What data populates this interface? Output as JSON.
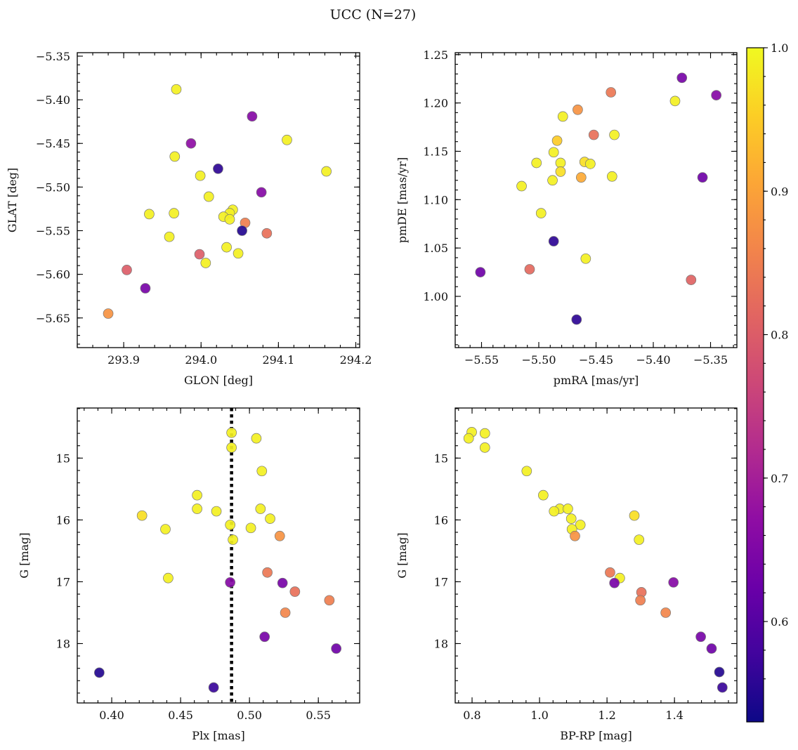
{
  "chart_data": {
    "title": "UCC (N=27)",
    "colorbar": {
      "range": [
        0.53,
        1.0
      ],
      "ticks": [
        "0.6",
        "0.7",
        "0.8",
        "0.9",
        "1.0"
      ],
      "colormap": "plasma"
    },
    "colors": {
      "marker_edge": "#777777",
      "reference_line": "#000000"
    },
    "reference_line": {
      "panel": 2,
      "x": 0.487,
      "style": "dotted"
    },
    "panels": [
      {
        "type": "scatter",
        "xlabel": "GLON [deg]",
        "ylabel": "GLAT [deg]",
        "xlim": [
          293.84,
          294.205
        ],
        "ylim": [
          -5.684,
          -5.346
        ],
        "xticks": [
          "293.9",
          "294.0",
          "294.1",
          "294.2"
        ],
        "yticks": [
          "−5.35",
          "−5.40",
          "−5.45",
          "−5.50",
          "−5.55",
          "−5.60",
          "−5.65"
        ],
        "points": [
          {
            "x": 293.968,
            "y": -5.388,
            "c": 0.99
          },
          {
            "x": 294.066,
            "y": -5.419,
            "c": 0.66
          },
          {
            "x": 293.987,
            "y": -5.45,
            "c": 0.67
          },
          {
            "x": 294.111,
            "y": -5.446,
            "c": 0.99
          },
          {
            "x": 293.966,
            "y": -5.465,
            "c": 0.99
          },
          {
            "x": 294.022,
            "y": -5.479,
            "c": 0.56
          },
          {
            "x": 294.162,
            "y": -5.482,
            "c": 0.99
          },
          {
            "x": 293.999,
            "y": -5.487,
            "c": 0.99
          },
          {
            "x": 294.078,
            "y": -5.506,
            "c": 0.66
          },
          {
            "x": 294.01,
            "y": -5.511,
            "c": 0.99
          },
          {
            "x": 293.933,
            "y": -5.531,
            "c": 0.99
          },
          {
            "x": 293.965,
            "y": -5.53,
            "c": 0.99
          },
          {
            "x": 294.041,
            "y": -5.526,
            "c": 0.99
          },
          {
            "x": 294.037,
            "y": -5.53,
            "c": 0.99
          },
          {
            "x": 294.029,
            "y": -5.534,
            "c": 0.99
          },
          {
            "x": 294.037,
            "y": -5.537,
            "c": 0.99
          },
          {
            "x": 294.057,
            "y": -5.541,
            "c": 0.85
          },
          {
            "x": 294.053,
            "y": -5.55,
            "c": 0.55
          },
          {
            "x": 294.085,
            "y": -5.553,
            "c": 0.83
          },
          {
            "x": 293.959,
            "y": -5.557,
            "c": 0.99
          },
          {
            "x": 294.033,
            "y": -5.569,
            "c": 0.99
          },
          {
            "x": 294.048,
            "y": -5.576,
            "c": 0.99
          },
          {
            "x": 293.998,
            "y": -5.577,
            "c": 0.8
          },
          {
            "x": 294.006,
            "y": -5.587,
            "c": 0.99
          },
          {
            "x": 293.904,
            "y": -5.595,
            "c": 0.8
          },
          {
            "x": 293.928,
            "y": -5.616,
            "c": 0.64
          },
          {
            "x": 293.88,
            "y": -5.645,
            "c": 0.88
          }
        ]
      },
      {
        "type": "scatter",
        "xlabel": "pmRA [mas/yr]",
        "ylabel": "pmDE [mas/yr]",
        "xlim": [
          -5.573,
          -5.327
        ],
        "ylim": [
          0.947,
          1.252
        ],
        "xticks": [
          "−5.55",
          "−5.50",
          "−5.45",
          "−5.40",
          "−5.35"
        ],
        "yticks": [
          "1.25",
          "1.20",
          "1.15",
          "1.10",
          "1.05",
          "1.00"
        ],
        "points": [
          {
            "x": -5.375,
            "y": 1.226,
            "c": 0.64
          },
          {
            "x": -5.437,
            "y": 1.211,
            "c": 0.84
          },
          {
            "x": -5.345,
            "y": 1.208,
            "c": 0.66
          },
          {
            "x": -5.381,
            "y": 1.202,
            "c": 0.99
          },
          {
            "x": -5.466,
            "y": 1.193,
            "c": 0.88
          },
          {
            "x": -5.479,
            "y": 1.186,
            "c": 0.99
          },
          {
            "x": -5.452,
            "y": 1.167,
            "c": 0.83
          },
          {
            "x": -5.434,
            "y": 1.167,
            "c": 0.99
          },
          {
            "x": -5.484,
            "y": 1.161,
            "c": 0.95
          },
          {
            "x": -5.487,
            "y": 1.149,
            "c": 0.99
          },
          {
            "x": -5.46,
            "y": 1.139,
            "c": 0.97
          },
          {
            "x": -5.455,
            "y": 1.137,
            "c": 0.99
          },
          {
            "x": -5.502,
            "y": 1.138,
            "c": 0.99
          },
          {
            "x": -5.481,
            "y": 1.138,
            "c": 0.99
          },
          {
            "x": -5.481,
            "y": 1.129,
            "c": 0.97
          },
          {
            "x": -5.463,
            "y": 1.123,
            "c": 0.91
          },
          {
            "x": -5.436,
            "y": 1.124,
            "c": 0.99
          },
          {
            "x": -5.357,
            "y": 1.123,
            "c": 0.63
          },
          {
            "x": -5.488,
            "y": 1.12,
            "c": 0.99
          },
          {
            "x": -5.515,
            "y": 1.114,
            "c": 0.99
          },
          {
            "x": -5.498,
            "y": 1.086,
            "c": 0.99
          },
          {
            "x": -5.487,
            "y": 1.057,
            "c": 0.56
          },
          {
            "x": -5.459,
            "y": 1.039,
            "c": 0.99
          },
          {
            "x": -5.508,
            "y": 1.028,
            "c": 0.82
          },
          {
            "x": -5.551,
            "y": 1.025,
            "c": 0.63
          },
          {
            "x": -5.367,
            "y": 1.017,
            "c": 0.81
          },
          {
            "x": -5.467,
            "y": 0.976,
            "c": 0.56
          }
        ]
      },
      {
        "type": "scatter",
        "xlabel": "Plx [mas]",
        "ylabel": "G [mag]",
        "xlim": [
          0.375,
          0.58
        ],
        "ylim": [
          18.96,
          14.19
        ],
        "xticks": [
          "0.40",
          "0.45",
          "0.50",
          "0.55"
        ],
        "yticks": [
          "15",
          "16",
          "17",
          "18"
        ],
        "points": [
          {
            "x": 0.487,
            "y": 14.59,
            "c": 0.99
          },
          {
            "x": 0.505,
            "y": 14.68,
            "c": 0.99
          },
          {
            "x": 0.487,
            "y": 14.83,
            "c": 0.99
          },
          {
            "x": 0.509,
            "y": 15.21,
            "c": 0.99
          },
          {
            "x": 0.462,
            "y": 15.6,
            "c": 0.99
          },
          {
            "x": 0.508,
            "y": 15.82,
            "c": 0.99
          },
          {
            "x": 0.462,
            "y": 15.82,
            "c": 0.99
          },
          {
            "x": 0.476,
            "y": 15.86,
            "c": 0.99
          },
          {
            "x": 0.422,
            "y": 15.93,
            "c": 0.97
          },
          {
            "x": 0.515,
            "y": 15.98,
            "c": 0.99
          },
          {
            "x": 0.486,
            "y": 16.08,
            "c": 0.99
          },
          {
            "x": 0.501,
            "y": 16.13,
            "c": 0.99
          },
          {
            "x": 0.439,
            "y": 16.15,
            "c": 0.99
          },
          {
            "x": 0.522,
            "y": 16.26,
            "c": 0.88
          },
          {
            "x": 0.488,
            "y": 16.32,
            "c": 0.99
          },
          {
            "x": 0.513,
            "y": 16.85,
            "c": 0.84
          },
          {
            "x": 0.441,
            "y": 16.94,
            "c": 0.99
          },
          {
            "x": 0.486,
            "y": 17.01,
            "c": 0.66
          },
          {
            "x": 0.524,
            "y": 17.02,
            "c": 0.64
          },
          {
            "x": 0.533,
            "y": 17.16,
            "c": 0.83
          },
          {
            "x": 0.558,
            "y": 17.3,
            "c": 0.85
          },
          {
            "x": 0.526,
            "y": 17.5,
            "c": 0.86
          },
          {
            "x": 0.511,
            "y": 17.89,
            "c": 0.64
          },
          {
            "x": 0.563,
            "y": 18.08,
            "c": 0.63
          },
          {
            "x": 0.391,
            "y": 18.47,
            "c": 0.55
          },
          {
            "x": 0.474,
            "y": 18.71,
            "c": 0.57
          }
        ]
      },
      {
        "type": "scatter",
        "xlabel": "BP-RP [mag]",
        "ylabel": "G [mag]",
        "xlim": [
          0.75,
          1.585
        ],
        "ylim": [
          18.96,
          14.19
        ],
        "xticks": [
          "0.8",
          "1.0",
          "1.2",
          "1.4"
        ],
        "yticks": [
          "15",
          "16",
          "17",
          "18"
        ],
        "points": [
          {
            "x": 0.799,
            "y": 14.58,
            "c": 0.99
          },
          {
            "x": 0.838,
            "y": 14.6,
            "c": 0.99
          },
          {
            "x": 0.79,
            "y": 14.68,
            "c": 0.99
          },
          {
            "x": 0.838,
            "y": 14.83,
            "c": 0.99
          },
          {
            "x": 0.962,
            "y": 15.21,
            "c": 0.99
          },
          {
            "x": 1.011,
            "y": 15.6,
            "c": 0.99
          },
          {
            "x": 1.06,
            "y": 15.82,
            "c": 0.99
          },
          {
            "x": 1.084,
            "y": 15.82,
            "c": 0.99
          },
          {
            "x": 1.043,
            "y": 15.86,
            "c": 0.99
          },
          {
            "x": 1.281,
            "y": 15.93,
            "c": 0.97
          },
          {
            "x": 1.094,
            "y": 15.98,
            "c": 0.99
          },
          {
            "x": 1.121,
            "y": 16.08,
            "c": 0.99
          },
          {
            "x": 1.096,
            "y": 16.15,
            "c": 0.99
          },
          {
            "x": 1.105,
            "y": 16.26,
            "c": 0.88
          },
          {
            "x": 1.295,
            "y": 16.32,
            "c": 0.99
          },
          {
            "x": 1.209,
            "y": 16.85,
            "c": 0.84
          },
          {
            "x": 1.238,
            "y": 16.94,
            "c": 0.99
          },
          {
            "x": 1.397,
            "y": 17.01,
            "c": 0.66
          },
          {
            "x": 1.222,
            "y": 17.02,
            "c": 0.64
          },
          {
            "x": 1.302,
            "y": 17.17,
            "c": 0.83
          },
          {
            "x": 1.299,
            "y": 17.3,
            "c": 0.85
          },
          {
            "x": 1.374,
            "y": 17.5,
            "c": 0.86
          },
          {
            "x": 1.478,
            "y": 17.89,
            "c": 0.64
          },
          {
            "x": 1.51,
            "y": 18.08,
            "c": 0.63
          },
          {
            "x": 1.533,
            "y": 18.46,
            "c": 0.55
          },
          {
            "x": 1.542,
            "y": 18.71,
            "c": 0.57
          }
        ]
      }
    ]
  }
}
